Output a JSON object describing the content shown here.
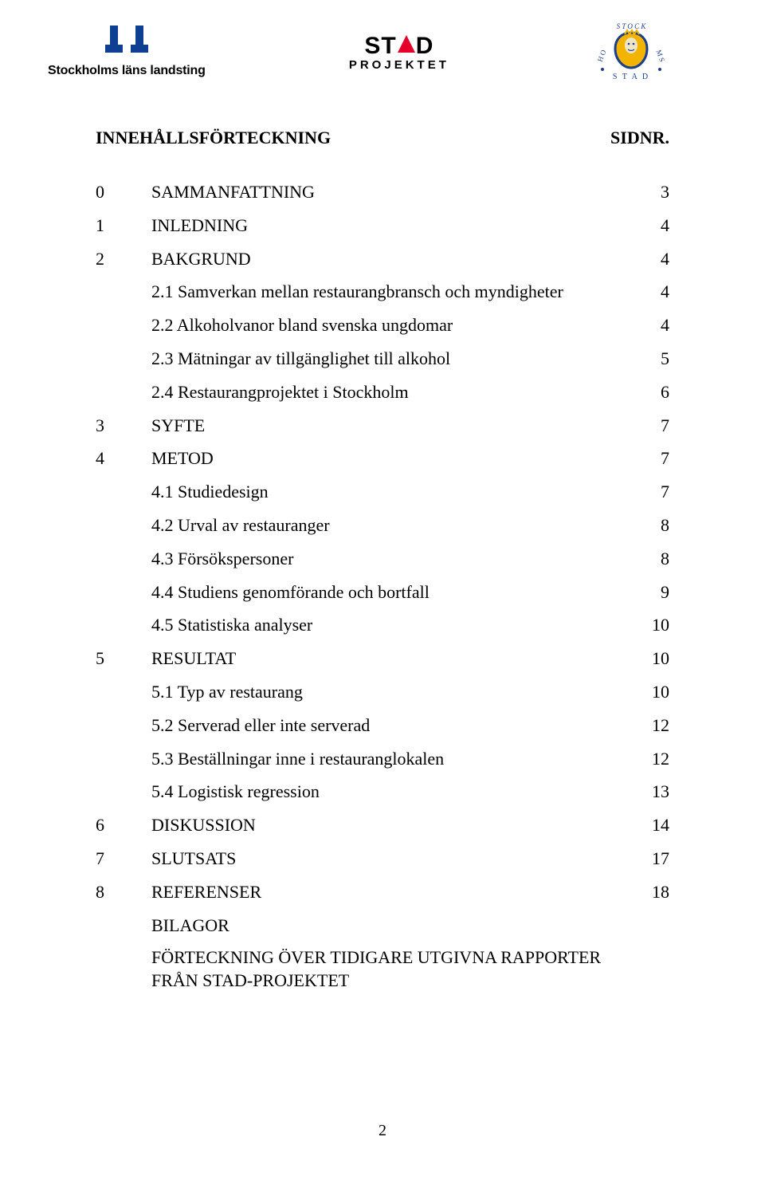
{
  "logos": {
    "sll_text": "Stockholms läns landsting",
    "stad_top_left": "ST",
    "stad_top_right": "D",
    "stad_bottom": "PROJEKTET"
  },
  "heading": {
    "left": "INNEHÅLLSFÖRTECKNING",
    "right": "SIDNR."
  },
  "toc": [
    {
      "num": "0",
      "title": "SAMMANFATTNING",
      "page": "3",
      "level": 1
    },
    {
      "num": "1",
      "title": "INLEDNING",
      "page": "4",
      "level": 1
    },
    {
      "num": "2",
      "title": "BAKGRUND",
      "page": "4",
      "level": 1
    },
    {
      "num": "",
      "title": "2.1 Samverkan mellan restaurangbransch och myndigheter",
      "page": "4",
      "level": 2
    },
    {
      "num": "",
      "title": "2.2 Alkoholvanor bland svenska ungdomar",
      "page": "4",
      "level": 2
    },
    {
      "num": "",
      "title": "2.3 Mätningar av tillgänglighet till alkohol",
      "page": "5",
      "level": 2
    },
    {
      "num": "",
      "title": "2.4 Restaurangprojektet i Stockholm",
      "page": "6",
      "level": 2
    },
    {
      "num": "3",
      "title": "SYFTE",
      "page": "7",
      "level": 1
    },
    {
      "num": "4",
      "title": "METOD",
      "page": "7",
      "level": 1
    },
    {
      "num": "",
      "title": "4.1 Studiedesign",
      "page": "7",
      "level": 2
    },
    {
      "num": "",
      "title": "4.2 Urval av restauranger",
      "page": "8",
      "level": 2
    },
    {
      "num": "",
      "title": "4.3 Försökspersoner",
      "page": "8",
      "level": 2
    },
    {
      "num": "",
      "title": "4.4 Studiens genomförande och bortfall",
      "page": "9",
      "level": 2
    },
    {
      "num": "",
      "title": "4.5 Statistiska analyser",
      "page": "10",
      "level": 2
    },
    {
      "num": "5",
      "title": "RESULTAT",
      "page": "10",
      "level": 1
    },
    {
      "num": "",
      "title": "5.1 Typ av restaurang",
      "page": "10",
      "level": 2
    },
    {
      "num": "",
      "title": "5.2 Serverad eller inte serverad",
      "page": "12",
      "level": 2
    },
    {
      "num": "",
      "title": "5.3 Beställningar inne i restauranglokalen",
      "page": "12",
      "level": 2
    },
    {
      "num": "",
      "title": "5.4 Logistisk regression",
      "page": "13",
      "level": 2
    },
    {
      "num": "6",
      "title": "DISKUSSION",
      "page": "14",
      "level": 1
    },
    {
      "num": "7",
      "title": "SLUTSATS",
      "page": "17",
      "level": 1
    },
    {
      "num": "8",
      "title": "REFERENSER",
      "page": "18",
      "level": 1
    },
    {
      "num": "",
      "title": "BILAGOR",
      "page": "",
      "level": 2
    },
    {
      "num": "",
      "title": "FÖRTECKNING ÖVER TIDIGARE UTGIVNA RAPPORTER FRÅN STAD-PROJEKTET",
      "page": "",
      "level": 2,
      "multi": true
    }
  ],
  "page_number": "2",
  "colors": {
    "sll_blue": "#0f3f93",
    "stad_red": "#e4002b",
    "stock_blue": "#1b3e8c",
    "stock_gold": "#f2b400",
    "text": "#000000",
    "bg": "#ffffff"
  }
}
